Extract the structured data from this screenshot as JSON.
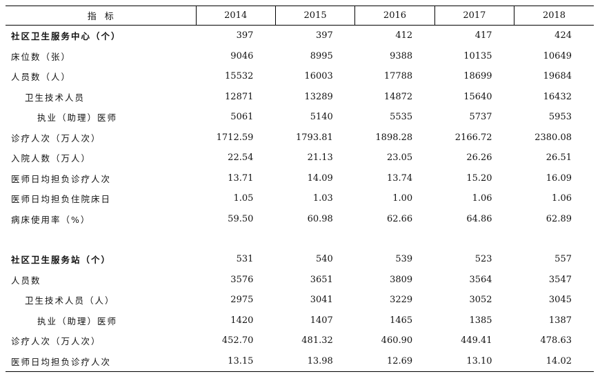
{
  "header": {
    "indicator": "指标",
    "years": [
      "2014",
      "2015",
      "2016",
      "2017",
      "2018"
    ]
  },
  "centers": [
    {
      "label": "社区卫生服务中心（个）",
      "values": [
        "397",
        "397",
        "412",
        "417",
        "424"
      ]
    },
    {
      "label": "床位数（张）",
      "values": [
        "9046",
        "8995",
        "9388",
        "10135",
        "10649"
      ]
    },
    {
      "label": "人员数（人）",
      "values": [
        "15532",
        "16003",
        "17788",
        "18699",
        "19684"
      ]
    },
    {
      "label": "卫生技术人员",
      "values": [
        "12871",
        "13289",
        "14872",
        "15640",
        "16432"
      ]
    },
    {
      "label": "执业（助理）医师",
      "values": [
        "5061",
        "5140",
        "5535",
        "5737",
        "5953"
      ]
    },
    {
      "label": "诊疗人次（万人次）",
      "values": [
        "1712.59",
        "1793.81",
        "1898.28",
        "2166.72",
        "2380.08"
      ]
    },
    {
      "label": "入院人数（万人）",
      "values": [
        "22.54",
        "21.13",
        "23.05",
        "26.26",
        "26.51"
      ]
    },
    {
      "label": "医师日均担负诊疗人次",
      "values": [
        "13.71",
        "14.09",
        "13.74",
        "15.20",
        "16.09"
      ]
    },
    {
      "label": "医师日均担负住院床日",
      "values": [
        "1.05",
        "1.03",
        "1.00",
        "1.06",
        "1.06"
      ]
    },
    {
      "label": "病床使用率（%）",
      "values": [
        "59.50",
        "60.98",
        "62.66",
        "64.86",
        "62.89"
      ]
    }
  ],
  "stations": [
    {
      "label": "社区卫生服务站（个）",
      "values": [
        "531",
        "540",
        "539",
        "523",
        "557"
      ]
    },
    {
      "label": "人员数",
      "values": [
        "3576",
        "3651",
        "3809",
        "3564",
        "3547"
      ]
    },
    {
      "label": "卫生技术人员（人）",
      "values": [
        "2975",
        "3041",
        "3229",
        "3052",
        "3045"
      ]
    },
    {
      "label": "执业（助理）医师",
      "values": [
        "1420",
        "1407",
        "1465",
        "1385",
        "1387"
      ]
    },
    {
      "label": "诊疗人次（万人次）",
      "values": [
        "452.70",
        "481.32",
        "460.90",
        "449.41",
        "478.63"
      ]
    },
    {
      "label": "医师日均担负诊疗人次",
      "values": [
        "13.15",
        "13.98",
        "12.69",
        "13.10",
        "14.02"
      ]
    }
  ]
}
